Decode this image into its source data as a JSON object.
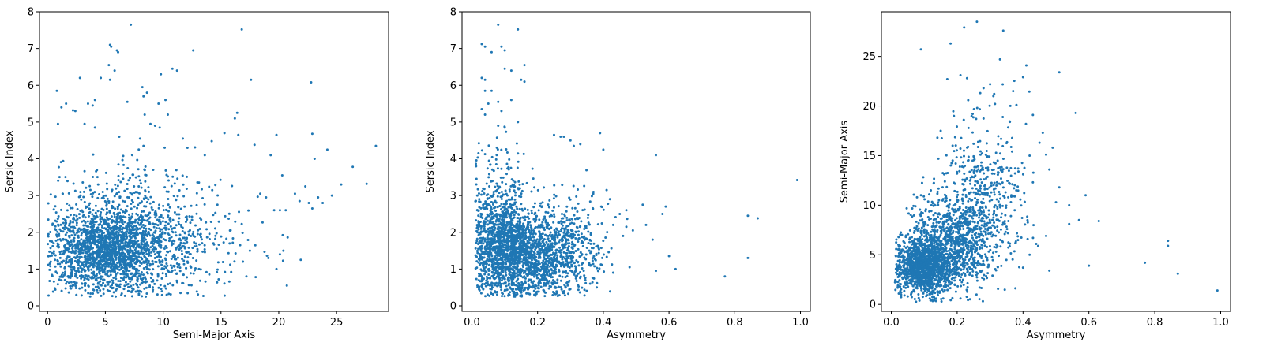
{
  "chart_data": [
    {
      "type": "scatter",
      "title": "",
      "xlabel": "Semi-Major Axis",
      "ylabel": "Sersic Index",
      "xlim": [
        -0.7,
        29.5
      ],
      "ylim": [
        -0.15,
        8.0
      ],
      "xticks": [
        0,
        5,
        10,
        15,
        20,
        25
      ],
      "yticks": [
        0,
        1,
        2,
        3,
        4,
        5,
        6,
        7,
        8
      ],
      "color": "#1f77b4",
      "n_points": 2600,
      "points": [
        [
          7.2,
          7.65
        ],
        [
          16.8,
          7.52
        ],
        [
          5.4,
          7.1
        ],
        [
          5.5,
          7.05
        ],
        [
          6.0,
          6.95
        ],
        [
          6.1,
          6.9
        ],
        [
          12.6,
          6.95
        ],
        [
          5.3,
          6.55
        ],
        [
          5.8,
          6.4
        ],
        [
          9.8,
          6.3
        ],
        [
          10.8,
          6.45
        ],
        [
          11.2,
          6.4
        ],
        [
          2.8,
          6.2
        ],
        [
          4.6,
          6.2
        ],
        [
          5.4,
          6.15
        ],
        [
          17.6,
          6.15
        ],
        [
          22.8,
          6.08
        ],
        [
          0.8,
          5.85
        ],
        [
          8.2,
          5.95
        ],
        [
          8.6,
          5.8
        ],
        [
          8.3,
          5.7
        ],
        [
          10.2,
          5.6
        ],
        [
          9.6,
          5.5
        ],
        [
          1.6,
          5.5
        ],
        [
          1.2,
          5.4
        ],
        [
          3.5,
          5.5
        ],
        [
          3.9,
          5.45
        ],
        [
          4.1,
          5.6
        ],
        [
          6.9,
          5.55
        ],
        [
          2.2,
          5.32
        ],
        [
          2.4,
          5.3
        ],
        [
          8.4,
          5.2
        ],
        [
          10.4,
          5.2
        ],
        [
          16.4,
          5.25
        ],
        [
          16.2,
          5.1
        ],
        [
          0.9,
          4.95
        ],
        [
          3.2,
          4.95
        ],
        [
          4.1,
          4.85
        ],
        [
          8.9,
          4.95
        ],
        [
          9.3,
          4.9
        ],
        [
          9.7,
          4.85
        ],
        [
          6.2,
          4.6
        ],
        [
          8.0,
          4.55
        ],
        [
          8.3,
          4.35
        ],
        [
          15.3,
          4.7
        ],
        [
          16.5,
          4.65
        ],
        [
          19.8,
          4.65
        ],
        [
          22.9,
          4.68
        ],
        [
          24.2,
          4.25
        ],
        [
          28.4,
          4.35
        ],
        [
          17.9,
          4.38
        ],
        [
          14.2,
          4.48
        ],
        [
          11.7,
          4.55
        ],
        [
          12.1,
          4.3
        ],
        [
          13.6,
          4.1
        ],
        [
          19.3,
          4.1
        ],
        [
          23.1,
          4.0
        ],
        [
          26.4,
          3.78
        ],
        [
          27.6,
          3.32
        ],
        [
          25.4,
          3.3
        ],
        [
          20.3,
          3.55
        ],
        [
          22.3,
          3.25
        ],
        [
          21.4,
          3.05
        ],
        [
          24.6,
          3.0
        ],
        [
          23.4,
          2.95
        ],
        [
          22.6,
          2.8
        ],
        [
          21.8,
          2.85
        ],
        [
          23.8,
          2.8
        ],
        [
          22.9,
          2.65
        ],
        [
          20.1,
          2.6
        ],
        [
          20.6,
          2.6
        ],
        [
          19.6,
          2.6
        ],
        [
          18.4,
          3.05
        ],
        [
          18.9,
          2.95
        ],
        [
          20.4,
          1.5
        ],
        [
          20.1,
          1.4
        ],
        [
          19.8,
          1.0
        ],
        [
          20.7,
          0.55
        ],
        [
          18.0,
          0.78
        ],
        [
          17.2,
          0.8
        ],
        [
          21.9,
          1.25
        ],
        [
          19.1,
          1.3
        ],
        [
          17.5,
          1.5
        ],
        [
          16.9,
          1.2
        ],
        [
          1.3,
          3.05
        ],
        [
          1.1,
          1.3
        ],
        [
          1.0,
          1.9
        ],
        [
          1.5,
          0.7
        ],
        [
          1.6,
          0.6
        ],
        [
          7.9,
          0.3
        ],
        [
          2.0,
          0.8
        ],
        [
          11.5,
          0.35
        ],
        [
          14.8,
          0.72
        ]
      ],
      "clusters": [
        {
          "x": 4.8,
          "y": 1.55,
          "sx": 2.2,
          "sy": 0.55,
          "n": 1450
        },
        {
          "x": 7.5,
          "y": 1.6,
          "sx": 3.0,
          "sy": 0.7,
          "n": 650
        },
        {
          "x": 11.0,
          "y": 1.9,
          "sx": 3.4,
          "sy": 0.85,
          "n": 300
        },
        {
          "x": 5.5,
          "y": 3.0,
          "sx": 2.6,
          "sy": 0.6,
          "n": 120
        }
      ]
    },
    {
      "type": "scatter",
      "title": "",
      "xlabel": "Asymmetry",
      "ylabel": "Sersic Index",
      "xlim": [
        -0.03,
        1.03
      ],
      "ylim": [
        -0.15,
        8.0
      ],
      "xticks": [
        0.0,
        0.2,
        0.4,
        0.6,
        0.8,
        1.0
      ],
      "yticks": [
        0,
        1,
        2,
        3,
        4,
        5,
        6,
        7,
        8
      ],
      "color": "#1f77b4",
      "n_points": 2600,
      "points": [
        [
          0.08,
          7.65
        ],
        [
          0.14,
          7.52
        ],
        [
          0.03,
          7.12
        ],
        [
          0.04,
          7.05
        ],
        [
          0.09,
          7.05
        ],
        [
          0.1,
          6.95
        ],
        [
          0.06,
          6.9
        ],
        [
          0.16,
          6.55
        ],
        [
          0.12,
          6.4
        ],
        [
          0.1,
          6.45
        ],
        [
          0.03,
          6.2
        ],
        [
          0.04,
          6.15
        ],
        [
          0.15,
          6.15
        ],
        [
          0.16,
          6.1
        ],
        [
          0.04,
          5.85
        ],
        [
          0.06,
          5.85
        ],
        [
          0.08,
          5.55
        ],
        [
          0.05,
          5.5
        ],
        [
          0.12,
          5.6
        ],
        [
          0.03,
          5.35
        ],
        [
          0.09,
          5.3
        ],
        [
          0.04,
          5.2
        ],
        [
          0.14,
          5.0
        ],
        [
          0.08,
          4.9
        ],
        [
          0.1,
          4.85
        ],
        [
          0.25,
          4.65
        ],
        [
          0.27,
          4.6
        ],
        [
          0.28,
          4.6
        ],
        [
          0.39,
          4.7
        ],
        [
          0.4,
          4.25
        ],
        [
          0.56,
          4.1
        ],
        [
          0.3,
          4.5
        ],
        [
          0.33,
          4.4
        ],
        [
          0.31,
          4.35
        ],
        [
          0.99,
          3.42
        ],
        [
          0.37,
          3.1
        ],
        [
          0.41,
          3.15
        ],
        [
          0.42,
          2.9
        ],
        [
          0.45,
          2.5
        ],
        [
          0.47,
          2.15
        ],
        [
          0.49,
          2.05
        ],
        [
          0.52,
          2.75
        ],
        [
          0.55,
          1.8
        ],
        [
          0.59,
          2.7
        ],
        [
          0.58,
          2.5
        ],
        [
          0.6,
          1.35
        ],
        [
          0.62,
          1.0
        ],
        [
          0.56,
          0.95
        ],
        [
          0.48,
          1.05
        ],
        [
          0.46,
          1.9
        ],
        [
          0.47,
          2.6
        ],
        [
          0.84,
          2.45
        ],
        [
          0.87,
          2.38
        ],
        [
          0.84,
          1.3
        ],
        [
          0.77,
          0.8
        ],
        [
          0.53,
          2.2
        ],
        [
          0.02,
          4.15
        ],
        [
          0.02,
          2.3
        ],
        [
          0.03,
          0.8
        ],
        [
          0.06,
          0.45
        ],
        [
          0.1,
          0.4
        ],
        [
          0.19,
          0.3
        ],
        [
          0.25,
          0.35
        ],
        [
          0.28,
          0.35
        ],
        [
          0.36,
          0.6
        ],
        [
          0.38,
          0.5
        ],
        [
          0.43,
          0.9
        ]
      ],
      "clusters": [
        {
          "x": 0.1,
          "y": 1.6,
          "sx": 0.05,
          "sy": 0.65,
          "n": 1200
        },
        {
          "x": 0.2,
          "y": 1.4,
          "sx": 0.07,
          "sy": 0.55,
          "n": 950
        },
        {
          "x": 0.3,
          "y": 1.7,
          "sx": 0.06,
          "sy": 0.7,
          "n": 300
        },
        {
          "x": 0.08,
          "y": 3.0,
          "sx": 0.04,
          "sy": 0.8,
          "n": 150
        }
      ]
    },
    {
      "type": "scatter",
      "title": "",
      "xlabel": "Asymmetry",
      "ylabel": "Semi-Major Axis",
      "xlim": [
        -0.03,
        1.03
      ],
      "ylim": [
        -0.7,
        29.5
      ],
      "xticks": [
        0.0,
        0.2,
        0.4,
        0.6,
        0.8,
        1.0
      ],
      "yticks": [
        0,
        5,
        10,
        15,
        20,
        25
      ],
      "color": "#1f77b4",
      "n_points": 2600,
      "points": [
        [
          0.26,
          28.5
        ],
        [
          0.34,
          27.6
        ],
        [
          0.09,
          25.7
        ],
        [
          0.18,
          26.3
        ],
        [
          0.33,
          24.7
        ],
        [
          0.41,
          24.1
        ],
        [
          0.51,
          23.4
        ],
        [
          0.21,
          23.1
        ],
        [
          0.23,
          22.8
        ],
        [
          0.17,
          22.7
        ],
        [
          0.4,
          22.9
        ],
        [
          0.3,
          22.2
        ],
        [
          0.28,
          21.8
        ],
        [
          0.27,
          21.3
        ],
        [
          0.37,
          21.5
        ],
        [
          0.38,
          20.1
        ],
        [
          0.56,
          19.3
        ],
        [
          0.19,
          19.0
        ],
        [
          0.43,
          19.1
        ],
        [
          0.36,
          18.4
        ],
        [
          0.22,
          18.6
        ],
        [
          0.15,
          17.5
        ],
        [
          0.14,
          16.8
        ],
        [
          0.46,
          17.3
        ],
        [
          0.45,
          16.3
        ],
        [
          0.49,
          15.8
        ],
        [
          0.47,
          15.1
        ],
        [
          0.42,
          15.0
        ],
        [
          0.48,
          13.6
        ],
        [
          0.43,
          12.3
        ],
        [
          0.51,
          11.8
        ],
        [
          0.5,
          10.3
        ],
        [
          0.54,
          10.0
        ],
        [
          0.59,
          11.0
        ],
        [
          0.57,
          8.5
        ],
        [
          0.63,
          8.4
        ],
        [
          0.54,
          8.1
        ],
        [
          0.47,
          6.9
        ],
        [
          0.44,
          6.1
        ],
        [
          0.42,
          5.0
        ],
        [
          0.4,
          3.7
        ],
        [
          0.48,
          3.4
        ],
        [
          0.6,
          3.9
        ],
        [
          0.77,
          4.2
        ],
        [
          0.84,
          6.4
        ],
        [
          0.84,
          5.9
        ],
        [
          0.87,
          3.1
        ],
        [
          0.99,
          1.4
        ],
        [
          0.03,
          1.2
        ],
        [
          0.04,
          0.9
        ],
        [
          0.05,
          0.8
        ],
        [
          0.06,
          1.0
        ],
        [
          0.02,
          1.8
        ],
        [
          0.07,
          1.3
        ],
        [
          0.09,
          1.8
        ],
        [
          0.11,
          2.3
        ],
        [
          0.31,
          21.0
        ],
        [
          0.25,
          16.2
        ],
        [
          0.29,
          14.9
        ],
        [
          0.33,
          13.8
        ],
        [
          0.12,
          11.5
        ],
        [
          0.09,
          11.0
        ]
      ],
      "clusters": [
        {
          "x": 0.1,
          "y": 3.8,
          "sx": 0.045,
          "sy": 1.4,
          "n": 1250
        },
        {
          "x": 0.18,
          "y": 6.0,
          "sx": 0.06,
          "sy": 2.3,
          "n": 800
        },
        {
          "x": 0.26,
          "y": 9.5,
          "sx": 0.065,
          "sy": 3.5,
          "n": 450
        },
        {
          "x": 0.3,
          "y": 13.5,
          "sx": 0.06,
          "sy": 4.0,
          "n": 100
        }
      ]
    }
  ]
}
